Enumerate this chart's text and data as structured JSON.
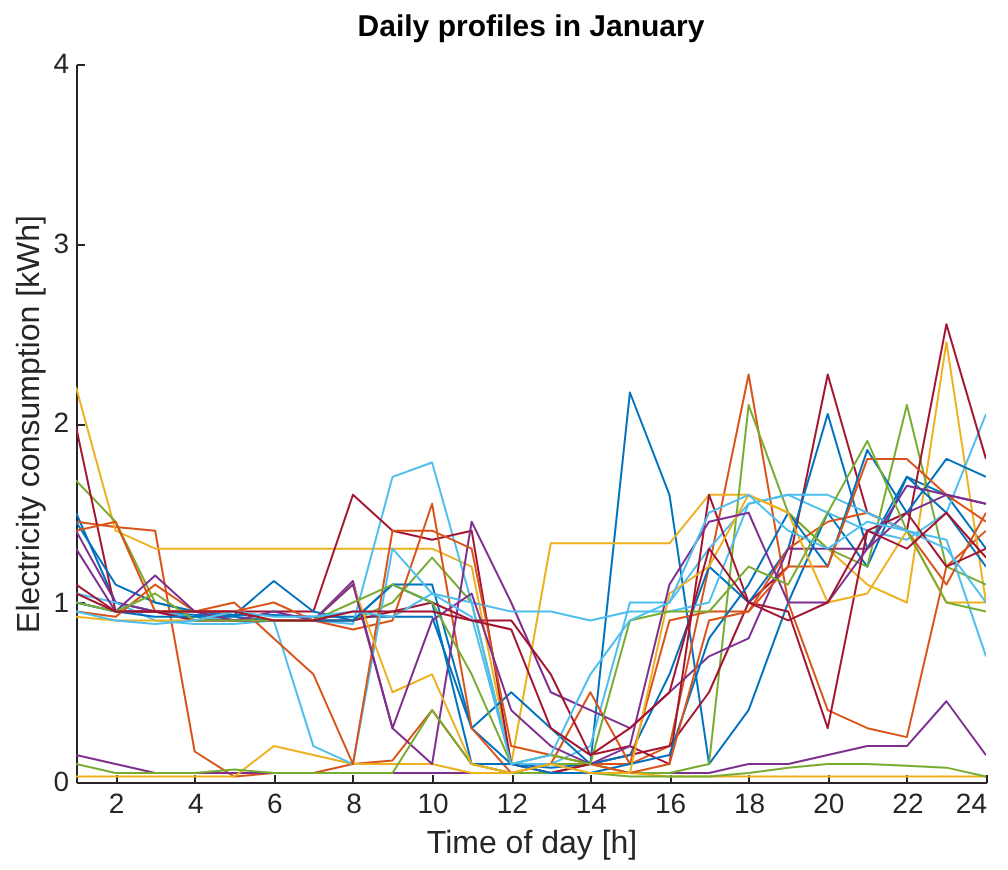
{
  "chart_data": {
    "type": "line",
    "title": "Daily profiles in January",
    "xlabel": "Time of day [h]",
    "ylabel": "Electricity consumption [kWh]",
    "x": [
      1,
      2,
      3,
      4,
      5,
      6,
      7,
      8,
      9,
      10,
      11,
      12,
      13,
      14,
      15,
      16,
      17,
      18,
      19,
      20,
      21,
      22,
      23,
      24
    ],
    "xlim": [
      1,
      24
    ],
    "xticks": [
      2,
      4,
      6,
      8,
      10,
      12,
      14,
      16,
      18,
      20,
      22,
      24
    ],
    "ylim": [
      0,
      4
    ],
    "yticks": [
      0,
      1,
      2,
      3,
      4
    ],
    "series": [
      {
        "color": "#0072bd",
        "values": [
          1.5,
          1.0,
          0.95,
          0.93,
          0.93,
          0.93,
          0.92,
          0.92,
          0.92,
          0.92,
          0.3,
          0.1,
          0.08,
          0.1,
          2.17,
          1.6,
          0.1,
          0.4,
          1.0,
          1.5,
          1.2,
          1.7,
          1.6,
          1.3
        ]
      },
      {
        "color": "#d95319",
        "values": [
          1.45,
          1.42,
          1.4,
          0.17,
          0.03,
          0.05,
          0.05,
          0.1,
          0.12,
          0.4,
          0.1,
          0.05,
          0.05,
          0.1,
          0.1,
          0.2,
          1.2,
          2.27,
          1.0,
          0.4,
          0.3,
          0.25,
          1.2,
          1.4
        ]
      },
      {
        "color": "#edb120",
        "values": [
          2.2,
          1.4,
          1.3,
          1.3,
          1.3,
          1.3,
          1.3,
          1.3,
          1.3,
          1.3,
          1.2,
          0.1,
          1.33,
          1.33,
          1.33,
          1.33,
          1.6,
          1.6,
          1.5,
          1.3,
          1.1,
          1.0,
          2.45,
          1.0
        ]
      },
      {
        "color": "#7e2f8e",
        "values": [
          0.15,
          0.1,
          0.05,
          0.05,
          0.05,
          0.05,
          0.05,
          0.05,
          0.05,
          0.05,
          0.05,
          0.05,
          0.05,
          0.05,
          0.05,
          0.05,
          0.05,
          0.1,
          0.1,
          0.15,
          0.2,
          0.2,
          0.45,
          0.15
        ]
      },
      {
        "color": "#77ac30",
        "values": [
          1.68,
          1.45,
          1.0,
          0.95,
          0.9,
          0.9,
          0.9,
          0.9,
          1.0,
          1.25,
          1.0,
          0.1,
          0.1,
          0.1,
          0.05,
          0.05,
          0.1,
          2.1,
          1.5,
          1.3,
          1.2,
          2.1,
          1.2,
          1.1
        ]
      },
      {
        "color": "#4dbeee",
        "values": [
          1.0,
          0.95,
          0.95,
          0.92,
          0.9,
          0.9,
          0.9,
          0.88,
          1.7,
          1.78,
          1.0,
          0.1,
          0.1,
          0.2,
          1.0,
          1.0,
          1.3,
          1.55,
          1.6,
          1.5,
          1.4,
          1.35,
          1.5,
          2.05
        ]
      },
      {
        "color": "#a2142f",
        "values": [
          1.98,
          0.95,
          0.95,
          0.95,
          0.95,
          0.95,
          0.95,
          1.6,
          1.4,
          1.35,
          1.4,
          0.1,
          0.05,
          0.1,
          0.15,
          0.2,
          0.5,
          1.0,
          1.2,
          2.27,
          1.5,
          1.4,
          2.55,
          1.8
        ]
      },
      {
        "color": "#0072bd",
        "values": [
          1.45,
          1.1,
          1.0,
          0.95,
          0.93,
          1.12,
          0.95,
          0.9,
          1.1,
          1.1,
          0.3,
          0.5,
          0.3,
          0.1,
          0.15,
          0.6,
          1.2,
          1.0,
          1.3,
          2.05,
          1.3,
          1.7,
          1.5,
          1.2
        ]
      },
      {
        "color": "#d95319",
        "values": [
          1.4,
          1.45,
          0.95,
          0.95,
          0.95,
          1.0,
          0.9,
          0.85,
          0.9,
          1.55,
          0.3,
          0.05,
          0.1,
          0.5,
          0.1,
          0.9,
          0.95,
          0.95,
          1.3,
          1.45,
          1.5,
          1.4,
          1.1,
          1.5
        ]
      },
      {
        "color": "#edb120",
        "values": [
          0.03,
          0.03,
          0.03,
          0.03,
          0.03,
          0.2,
          0.15,
          0.1,
          0.1,
          0.1,
          0.05,
          0.05,
          0.05,
          0.05,
          0.05,
          0.03,
          0.03,
          0.03,
          0.03,
          0.03,
          0.03,
          0.03,
          0.03,
          0.03
        ]
      },
      {
        "color": "#7e2f8e",
        "values": [
          1.4,
          1.0,
          0.95,
          0.9,
          0.9,
          0.9,
          0.9,
          1.12,
          0.3,
          0.1,
          1.45,
          1.0,
          0.5,
          0.4,
          0.3,
          0.5,
          0.7,
          0.8,
          1.3,
          1.3,
          1.3,
          1.5,
          1.6,
          1.55
        ]
      },
      {
        "color": "#77ac30",
        "values": [
          0.1,
          0.05,
          0.05,
          0.05,
          0.07,
          0.05,
          0.05,
          0.05,
          0.05,
          0.4,
          0.1,
          0.05,
          0.05,
          0.05,
          0.03,
          0.03,
          0.03,
          0.05,
          0.08,
          0.1,
          0.1,
          0.09,
          0.08,
          0.03
        ]
      },
      {
        "color": "#4dbeee",
        "values": [
          1.05,
          1.0,
          0.9,
          0.88,
          0.88,
          0.9,
          0.2,
          0.1,
          1.3,
          1.05,
          1.0,
          0.95,
          0.95,
          0.9,
          0.95,
          0.95,
          1.0,
          1.55,
          1.6,
          1.6,
          1.5,
          1.4,
          1.35,
          0.7
        ]
      },
      {
        "color": "#a2142f",
        "values": [
          1.1,
          0.95,
          0.95,
          0.9,
          0.9,
          0.9,
          0.9,
          0.9,
          0.95,
          1.0,
          0.9,
          0.9,
          0.6,
          0.15,
          0.2,
          0.1,
          1.6,
          1.0,
          0.95,
          0.3,
          1.4,
          1.5,
          1.2,
          1.3
        ]
      },
      {
        "color": "#0072bd",
        "values": [
          1.0,
          0.95,
          0.92,
          0.92,
          0.92,
          0.9,
          0.9,
          0.9,
          1.1,
          1.0,
          0.1,
          0.1,
          0.05,
          0.05,
          0.1,
          0.15,
          0.8,
          1.1,
          1.5,
          1.2,
          1.85,
          1.5,
          1.8,
          1.7
        ]
      },
      {
        "color": "#d95319",
        "values": [
          0.95,
          0.92,
          1.1,
          0.95,
          1.0,
          0.8,
          0.6,
          0.1,
          1.4,
          1.4,
          1.3,
          0.2,
          0.15,
          0.1,
          0.05,
          0.1,
          0.9,
          0.95,
          1.2,
          1.2,
          1.8,
          1.8,
          1.6,
          1.45
        ]
      },
      {
        "color": "#edb120",
        "values": [
          0.92,
          0.9,
          0.9,
          0.9,
          0.95,
          0.9,
          0.9,
          1.1,
          0.5,
          0.6,
          0.1,
          0.05,
          0.1,
          0.05,
          0.05,
          1.05,
          1.2,
          1.6,
          1.5,
          1.0,
          1.05,
          1.4,
          1.0,
          1.0
        ]
      },
      {
        "color": "#7e2f8e",
        "values": [
          1.3,
          0.95,
          1.15,
          0.95,
          0.9,
          0.95,
          0.9,
          1.1,
          0.3,
          0.9,
          1.05,
          0.4,
          0.2,
          0.1,
          0.2,
          1.1,
          1.45,
          1.5,
          1.0,
          1.0,
          1.3,
          1.65,
          1.6,
          1.55
        ]
      },
      {
        "color": "#77ac30",
        "values": [
          1.0,
          0.95,
          1.05,
          0.9,
          0.9,
          0.9,
          0.9,
          1.0,
          1.1,
          1.0,
          0.6,
          0.1,
          0.15,
          0.1,
          0.9,
          0.95,
          0.95,
          1.2,
          1.1,
          1.5,
          1.9,
          1.4,
          1.0,
          0.95
        ]
      },
      {
        "color": "#4dbeee",
        "values": [
          0.95,
          0.9,
          0.88,
          0.9,
          0.95,
          0.92,
          0.92,
          0.95,
          0.92,
          1.05,
          0.92,
          0.1,
          0.15,
          0.6,
          0.9,
          1.0,
          1.5,
          1.6,
          1.4,
          1.3,
          1.45,
          1.4,
          1.3,
          1.0
        ]
      },
      {
        "color": "#a2142f",
        "values": [
          1.05,
          0.95,
          0.95,
          0.95,
          0.95,
          0.9,
          0.9,
          0.95,
          0.95,
          0.95,
          0.9,
          0.85,
          0.3,
          0.15,
          0.3,
          0.5,
          1.3,
          1.0,
          0.9,
          1.0,
          1.4,
          1.3,
          1.5,
          1.25
        ]
      }
    ]
  }
}
